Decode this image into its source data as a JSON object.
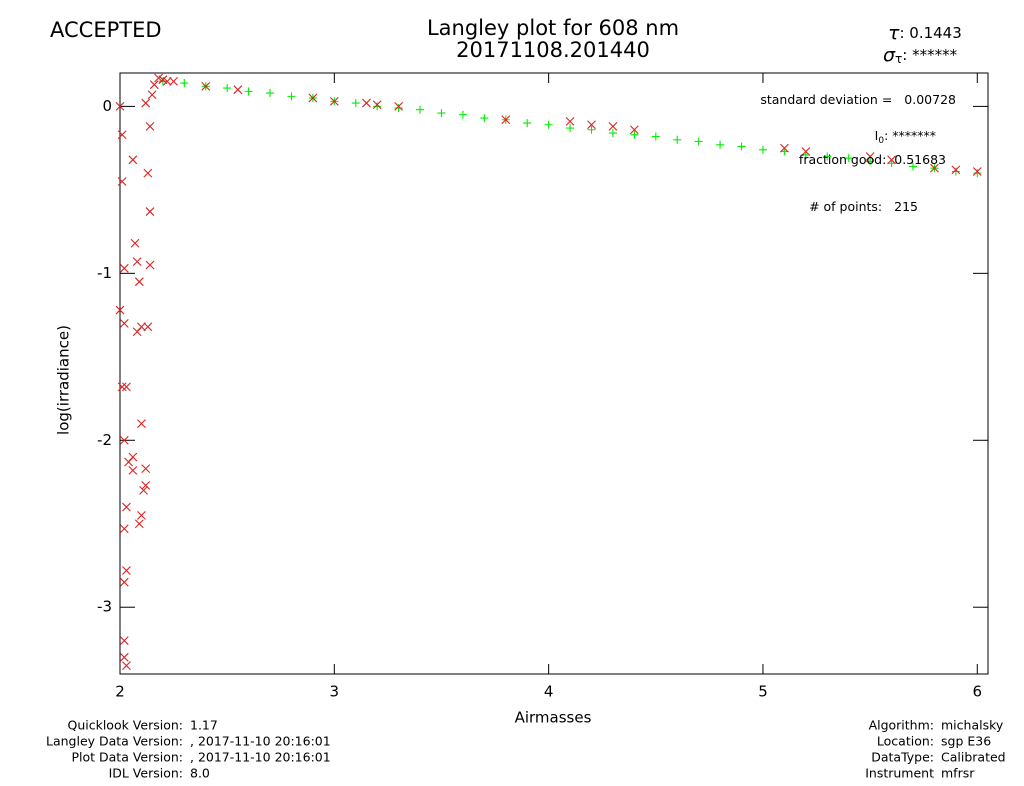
{
  "chart_data": {
    "type": "scatter",
    "status": "ACCEPTED",
    "status_color": "#22dd22",
    "title": "Langley plot for 608 nm",
    "subtitle": "20171108.201440",
    "tau": {
      "symbol": "τ",
      "value": 0.1443
    },
    "sigma_tau": {
      "symbol": "σ",
      "subscript": "τ",
      "value": "******"
    },
    "x_label": "Airmasses",
    "y_label": "log(irradiance)",
    "xlim": [
      2,
      6.05
    ],
    "ylim": [
      -3.4,
      0.2
    ],
    "xticks": [
      2,
      3,
      4,
      5,
      6
    ],
    "yticks": [
      -3,
      -2,
      -1,
      0
    ],
    "annotations": [
      {
        "label": "standard deviation  =",
        "value": 0.00728
      },
      {
        "label": "I",
        "subscript": "0",
        "value": "*******"
      },
      {
        "label": "fraction good:",
        "value": 0.51683
      },
      {
        "label": "# of points:",
        "value": 215
      }
    ],
    "series": [
      {
        "marker": "+",
        "color": "#00ee00",
        "x": [
          2.2,
          2.3,
          2.4,
          2.5,
          2.6,
          2.7,
          2.8,
          2.9,
          3.0,
          3.1,
          3.2,
          3.3,
          3.4,
          3.5,
          3.6,
          3.7,
          3.8,
          3.9,
          4.0,
          4.1,
          4.2,
          4.3,
          4.4,
          4.5,
          4.6,
          4.7,
          4.8,
          4.9,
          5.0,
          5.1,
          5.2,
          5.3,
          5.4,
          5.5,
          5.6,
          5.7,
          5.8,
          5.9,
          6.0
        ],
        "values": [
          0.15,
          0.14,
          0.12,
          0.11,
          0.09,
          0.08,
          0.06,
          0.05,
          0.03,
          0.02,
          0.0,
          -0.01,
          -0.02,
          -0.04,
          -0.05,
          -0.07,
          -0.08,
          -0.1,
          -0.11,
          -0.13,
          -0.14,
          -0.16,
          -0.17,
          -0.18,
          -0.2,
          -0.21,
          -0.23,
          -0.24,
          -0.26,
          -0.27,
          -0.29,
          -0.3,
          -0.31,
          -0.33,
          -0.34,
          -0.36,
          -0.37,
          -0.39,
          -0.4
        ]
      },
      {
        "marker": "x",
        "color": "#dd2222",
        "x": [
          2.0,
          2.01,
          2.01,
          2.02,
          2.0,
          2.02,
          2.01,
          2.03,
          2.02,
          2.04,
          2.03,
          2.02,
          2.03,
          2.02,
          2.02,
          2.02,
          2.03,
          2.06,
          2.07,
          2.08,
          2.09,
          2.08,
          2.1,
          2.1,
          2.11,
          2.1,
          2.12,
          2.13,
          2.14,
          2.14,
          2.14,
          2.13,
          2.06,
          2.06,
          2.09,
          2.12,
          2.15,
          2.12,
          2.16,
          2.18,
          2.2,
          2.22,
          2.25,
          2.4,
          2.55,
          2.9,
          3.0,
          3.15,
          3.2,
          3.3,
          3.8,
          4.1,
          4.2,
          4.3,
          4.4,
          5.1,
          5.2,
          5.5,
          5.6,
          5.8,
          5.9,
          6.0
        ],
        "values": [
          0.0,
          -0.17,
          -0.45,
          -0.97,
          -1.22,
          -1.3,
          -1.68,
          -1.68,
          -2.0,
          -2.13,
          -2.4,
          -2.53,
          -2.78,
          -2.85,
          -3.2,
          -3.3,
          -3.35,
          -0.32,
          -0.82,
          -0.93,
          -1.05,
          -1.35,
          -1.32,
          -1.9,
          -2.3,
          -2.45,
          -2.17,
          -0.4,
          -0.63,
          -0.95,
          -0.12,
          -1.32,
          -2.1,
          -2.18,
          -2.5,
          -2.27,
          0.07,
          0.02,
          0.13,
          0.17,
          0.16,
          0.15,
          0.15,
          0.12,
          0.1,
          0.05,
          0.03,
          0.02,
          0.01,
          0.0,
          -0.08,
          -0.09,
          -0.11,
          -0.12,
          -0.14,
          -0.25,
          -0.27,
          -0.3,
          -0.32,
          -0.37,
          -0.38,
          -0.39
        ]
      }
    ],
    "footer_left": [
      {
        "label": "Quicklook Version:",
        "value": "1.17"
      },
      {
        "label": "Langley Data Version:",
        "value": ", 2017-11-10 20:16:01"
      },
      {
        "label": "Plot Data Version:",
        "value": ", 2017-11-10 20:16:01"
      },
      {
        "label": "IDL Version:",
        "value": "8.0"
      }
    ],
    "footer_right": [
      {
        "label": "Algorithm:",
        "value": "michalsky"
      },
      {
        "label": "Location:",
        "value": "sgp E36"
      },
      {
        "label": "DataType:",
        "value": "Calibrated"
      },
      {
        "label": "Instrument",
        "value": "mfrsr"
      }
    ]
  }
}
